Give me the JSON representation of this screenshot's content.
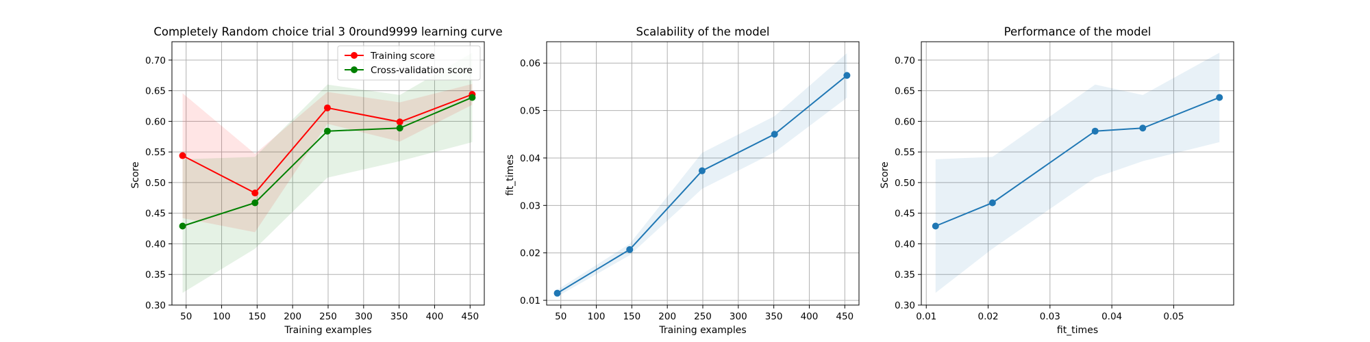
{
  "chart_data": [
    {
      "type": "line",
      "title": "Completely Random choice trial 3 0round9999 learning curve",
      "xlabel": "Training examples",
      "ylabel": "Score",
      "xlim": [
        30,
        470
      ],
      "ylim": [
        0.3,
        0.73
      ],
      "xticks": [
        "50",
        "100",
        "150",
        "200",
        "250",
        "300",
        "350",
        "400",
        "450"
      ],
      "yticks": [
        "0.30",
        "0.35",
        "0.40",
        "0.45",
        "0.50",
        "0.55",
        "0.60",
        "0.65",
        "0.70"
      ],
      "grid": true,
      "legend_position": "top-right",
      "x": [
        45,
        147,
        249,
        351,
        453
      ],
      "series": [
        {
          "name": "Training score",
          "color": "#ff0000",
          "values": [
            0.544,
            0.483,
            0.622,
            0.599,
            0.644
          ],
          "band_low": [
            0.442,
            0.419,
            0.596,
            0.567,
            0.627
          ],
          "band_high": [
            0.646,
            0.547,
            0.648,
            0.631,
            0.661
          ]
        },
        {
          "name": "Cross-validation score",
          "color": "#008000",
          "values": [
            0.429,
            0.467,
            0.584,
            0.589,
            0.639
          ],
          "band_low": [
            0.32,
            0.392,
            0.508,
            0.535,
            0.566
          ],
          "band_high": [
            0.538,
            0.542,
            0.66,
            0.643,
            0.712
          ]
        }
      ]
    },
    {
      "type": "line",
      "title": "Scalability of the model",
      "xlabel": "Training examples",
      "ylabel": "fit_times",
      "xlim": [
        30,
        470
      ],
      "ylim": [
        0.009,
        0.0645
      ],
      "xticks": [
        "50",
        "100",
        "150",
        "200",
        "250",
        "300",
        "350",
        "400",
        "450"
      ],
      "yticks": [
        "0.01",
        "0.02",
        "0.03",
        "0.04",
        "0.05",
        "0.06"
      ],
      "grid": true,
      "x": [
        45,
        147,
        249,
        351,
        453
      ],
      "series": [
        {
          "color": "#1f77b4",
          "values": [
            0.0115,
            0.0207,
            0.0373,
            0.045,
            0.0574
          ],
          "band_low": [
            0.0108,
            0.0195,
            0.0335,
            0.0412,
            0.0527
          ],
          "band_high": [
            0.0122,
            0.0219,
            0.0411,
            0.0488,
            0.0621
          ]
        }
      ]
    },
    {
      "type": "line",
      "title": "Performance of the model",
      "xlabel": "fit_times",
      "ylabel": "Score",
      "xlim": [
        0.0092,
        0.0597
      ],
      "ylim": [
        0.3,
        0.73
      ],
      "xticks": [
        "0.01",
        "0.02",
        "0.03",
        "0.04",
        "0.05"
      ],
      "yticks": [
        "0.30",
        "0.35",
        "0.40",
        "0.45",
        "0.50",
        "0.55",
        "0.60",
        "0.65",
        "0.70"
      ],
      "grid": true,
      "x": [
        0.0115,
        0.0207,
        0.0373,
        0.045,
        0.0574
      ],
      "series": [
        {
          "color": "#1f77b4",
          "values": [
            0.429,
            0.467,
            0.584,
            0.589,
            0.639
          ],
          "band_low": [
            0.32,
            0.392,
            0.508,
            0.535,
            0.566
          ],
          "band_high": [
            0.538,
            0.542,
            0.66,
            0.643,
            0.712
          ]
        }
      ]
    }
  ]
}
